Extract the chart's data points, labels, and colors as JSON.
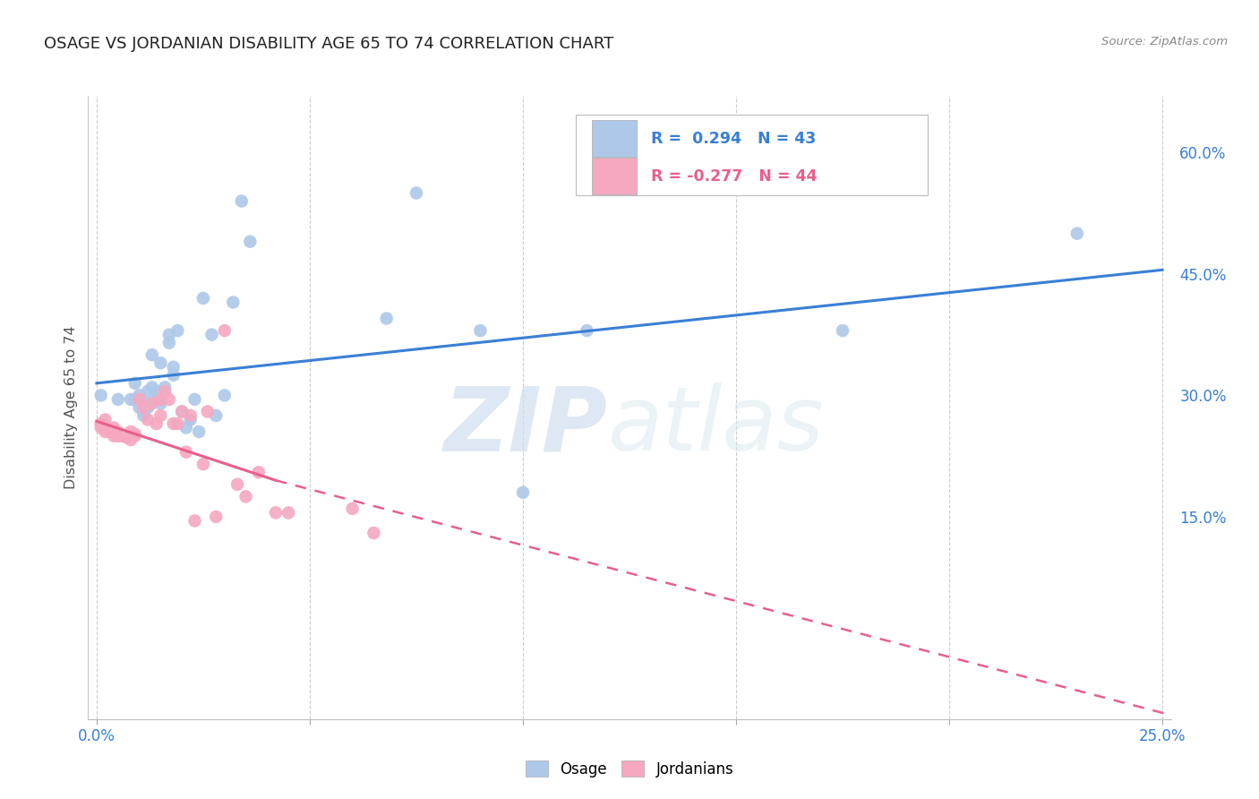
{
  "title": "OSAGE VS JORDANIAN DISABILITY AGE 65 TO 74 CORRELATION CHART",
  "source": "Source: ZipAtlas.com",
  "ylabel": "Disability Age 65 to 74",
  "watermark_zip": "ZIP",
  "watermark_atlas": "atlas",
  "legend_blue_text": "R =  0.294   N = 43",
  "legend_pink_text": "R = -0.277   N = 44",
  "blue_scatter_color": "#adc8e8",
  "pink_scatter_color": "#f5a8c0",
  "blue_line_color": "#3a7fd5",
  "pink_line_color": "#e8608a",
  "background": "#ffffff",
  "grid_color": "#cccccc",
  "xlim": [
    -0.002,
    0.252
  ],
  "ylim": [
    -0.1,
    0.67
  ],
  "x_ticks": [
    0.0,
    0.05,
    0.1,
    0.15,
    0.2,
    0.25
  ],
  "x_tick_labels_left": "0.0%",
  "x_tick_labels_right": "25.0%",
  "y_ticks_right": [
    0.15,
    0.3,
    0.45,
    0.6
  ],
  "y_tick_labels_right": [
    "15.0%",
    "30.0%",
    "45.0%",
    "60.0%"
  ],
  "osage_x": [
    0.001,
    0.005,
    0.008,
    0.009,
    0.009,
    0.01,
    0.01,
    0.011,
    0.011,
    0.012,
    0.012,
    0.012,
    0.013,
    0.013,
    0.014,
    0.014,
    0.015,
    0.015,
    0.016,
    0.017,
    0.017,
    0.018,
    0.018,
    0.019,
    0.02,
    0.021,
    0.022,
    0.023,
    0.024,
    0.025,
    0.027,
    0.028,
    0.03,
    0.032,
    0.034,
    0.036,
    0.068,
    0.075,
    0.09,
    0.1,
    0.115,
    0.175,
    0.23
  ],
  "osage_y": [
    0.3,
    0.295,
    0.295,
    0.315,
    0.295,
    0.285,
    0.3,
    0.275,
    0.28,
    0.305,
    0.285,
    0.29,
    0.35,
    0.31,
    0.295,
    0.305,
    0.29,
    0.34,
    0.31,
    0.375,
    0.365,
    0.325,
    0.335,
    0.38,
    0.28,
    0.26,
    0.27,
    0.295,
    0.255,
    0.42,
    0.375,
    0.275,
    0.3,
    0.415,
    0.54,
    0.49,
    0.395,
    0.55,
    0.38,
    0.18,
    0.38,
    0.38,
    0.5
  ],
  "jordan_x": [
    0.001,
    0.001,
    0.002,
    0.002,
    0.003,
    0.004,
    0.004,
    0.005,
    0.005,
    0.005,
    0.006,
    0.006,
    0.007,
    0.007,
    0.008,
    0.008,
    0.009,
    0.009,
    0.01,
    0.011,
    0.012,
    0.013,
    0.014,
    0.015,
    0.015,
    0.016,
    0.017,
    0.018,
    0.019,
    0.02,
    0.021,
    0.022,
    0.023,
    0.025,
    0.026,
    0.028,
    0.03,
    0.033,
    0.035,
    0.038,
    0.042,
    0.045,
    0.06,
    0.065
  ],
  "jordan_y": [
    0.265,
    0.26,
    0.255,
    0.27,
    0.255,
    0.25,
    0.26,
    0.25,
    0.255,
    0.25,
    0.25,
    0.25,
    0.248,
    0.25,
    0.255,
    0.245,
    0.25,
    0.252,
    0.295,
    0.285,
    0.27,
    0.29,
    0.265,
    0.275,
    0.295,
    0.305,
    0.295,
    0.265,
    0.265,
    0.28,
    0.23,
    0.275,
    0.145,
    0.215,
    0.28,
    0.15,
    0.38,
    0.19,
    0.175,
    0.205,
    0.155,
    0.155,
    0.16,
    0.13
  ],
  "blue_line": {
    "x0": 0.0,
    "x1": 0.25,
    "y0": 0.315,
    "y1": 0.455
  },
  "pink_line_x0": 0.0,
  "pink_line_solid_x1": 0.042,
  "pink_line_dash_x1": 0.252,
  "pink_line_y0": 0.268,
  "pink_line_y1_at_solid_end": 0.195,
  "pink_line_y1_final": -0.095
}
